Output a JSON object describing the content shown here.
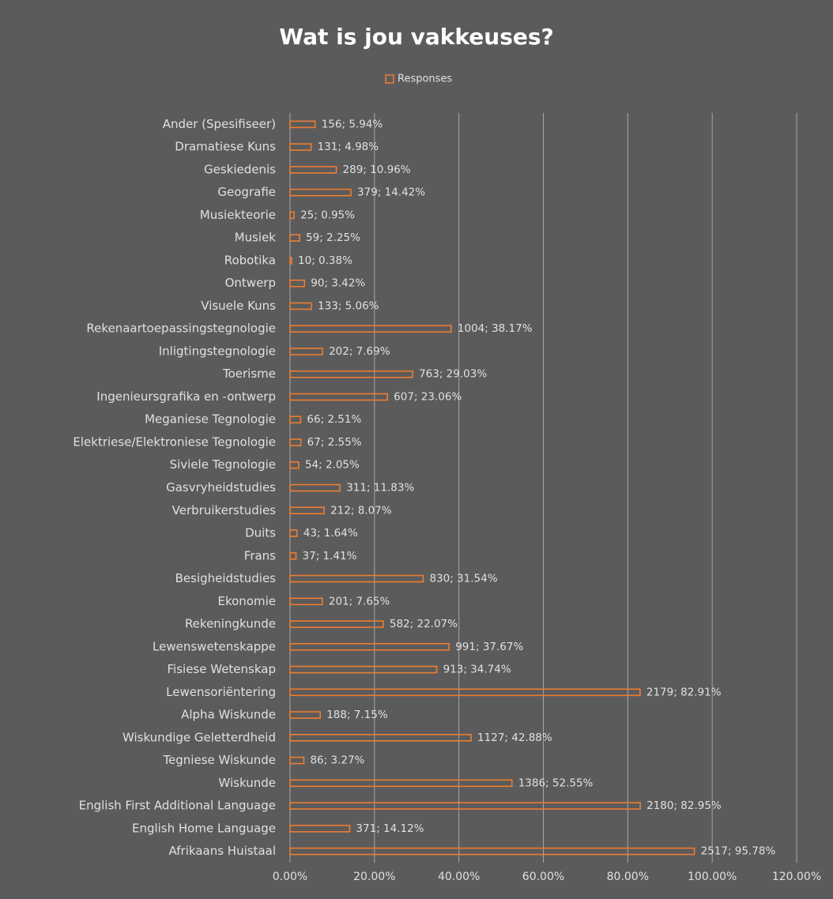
{
  "chart_data": {
    "type": "bar",
    "orientation": "horizontal",
    "title": "Wat is jou vakkeuses?",
    "categories": [
      "Ander (Spesifiseer)",
      "Dramatiese Kuns",
      "Geskiedenis",
      "Geografie",
      "Musiekteorie",
      "Musiek",
      "Robotika",
      "Ontwerp",
      "Visuele Kuns",
      "Rekenaartoepassingstegnologie",
      "Inligtingstegnologie",
      "Toerisme",
      "Ingenieursgrafika en -ontwerp",
      "Meganiese Tegnologie",
      "Elektriese/Elektroniese Tegnologie",
      "Siviele Tegnologie",
      "Gasvryheidstudies",
      "Verbruikerstudies",
      "Duits",
      "Frans",
      "Besigheidstudies",
      "Ekonomie",
      "Rekeningkunde",
      "Lewenswetenskappe",
      "Fisiese Wetenskap",
      "Lewensoriëntering",
      "Alpha Wiskunde",
      "Wiskundige Geletterdheid",
      "Tegniese Wiskunde",
      "Wiskunde",
      "English First Additional Language",
      "English Home Language",
      "Afrikaans Huistaal"
    ],
    "series": [
      {
        "name": "Responses",
        "color": "#ed7d31",
        "values": [
          5.94,
          4.98,
          10.96,
          14.42,
          0.95,
          2.25,
          0.38,
          3.42,
          5.06,
          38.17,
          7.69,
          29.03,
          23.06,
          2.51,
          2.55,
          2.05,
          11.83,
          8.07,
          1.64,
          1.41,
          31.54,
          7.65,
          22.07,
          37.67,
          34.74,
          82.91,
          7.15,
          42.88,
          3.27,
          52.55,
          82.95,
          14.12,
          95.78
        ],
        "value_labels": [
          "156; 5.94%",
          "131; 4.98%",
          "289; 10.96%",
          "379; 14.42%",
          "25; 0.95%",
          "59; 2.25%",
          "10; 0.38%",
          "90; 3.42%",
          "133; 5.06%",
          "1004; 38.17%",
          "202; 7.69%",
          "763; 29.03%",
          "607; 23.06%",
          "66; 2.51%",
          "67; 2.55%",
          "54; 2.05%",
          "311; 11.83%",
          "212; 8.07%",
          "43; 1.64%",
          "37; 1.41%",
          "830; 31.54%",
          "201; 7.65%",
          "582; 22.07%",
          "991; 37.67%",
          "913; 34.74%",
          "2179; 82.91%",
          "188; 7.15%",
          "1127; 42.88%",
          "86; 3.27%",
          "1386; 52.55%",
          "2180; 82.95%",
          "371; 14.12%",
          "2517; 95.78%"
        ]
      }
    ],
    "xlim": [
      0,
      120
    ],
    "xticks": [
      {
        "value": 0,
        "label": "0.00%"
      },
      {
        "value": 20,
        "label": "20.00%"
      },
      {
        "value": 40,
        "label": "40.00%"
      },
      {
        "value": 60,
        "label": "60.00%"
      },
      {
        "value": 80,
        "label": "80.00%"
      },
      {
        "value": 100,
        "label": "100.00%"
      },
      {
        "value": 120,
        "label": "120.00%"
      }
    ],
    "grid": true,
    "legend": "top"
  }
}
